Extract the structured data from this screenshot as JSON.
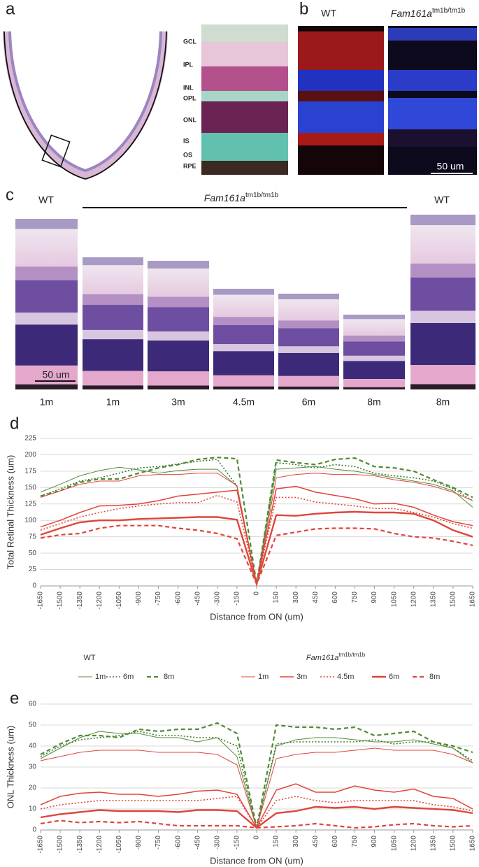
{
  "panel_a": {
    "label": "a",
    "layers": [
      "GCL",
      "IPL",
      "INL",
      "OPL",
      "ONL",
      "IS",
      "OS",
      "RPE"
    ]
  },
  "panel_b": {
    "label": "b",
    "wt": "WT",
    "mutant": {
      "gene": "Fam161a",
      "allele": "tm1b/tm1b"
    },
    "scale_bar": "50 um"
  },
  "panel_c": {
    "label": "c",
    "wt_left": "WT",
    "mutant": {
      "gene": "Fam161a",
      "allele": "tm1b/tm1b"
    },
    "wt_right": "WT",
    "scale_bar": "50 um",
    "ages": [
      "1m",
      "1m",
      "3m",
      "4.5m",
      "6m",
      "8m",
      "8m"
    ]
  },
  "legend_titles": [
    "WT",
    {
      "gene": "Fam161a",
      "allele": "tm1b/tm1b"
    }
  ],
  "chart_data": [
    {
      "type": "line",
      "panel_label": "d",
      "y_label": "Total Retinal Thickness (um)",
      "x_label": "Distance from ON (um)",
      "x": [
        -1650,
        -1500,
        -1350,
        -1200,
        -1050,
        -900,
        -750,
        -600,
        -450,
        -300,
        -150,
        0,
        150,
        300,
        450,
        600,
        750,
        900,
        1050,
        1200,
        1350,
        1500,
        1650
      ],
      "xlim": [
        -1650,
        1650
      ],
      "xticks": [
        -1650,
        -1500,
        -1350,
        -1200,
        -1050,
        -900,
        -750,
        -600,
        -450,
        -300,
        -150,
        0,
        150,
        300,
        450,
        600,
        750,
        900,
        1050,
        1200,
        1350,
        1500,
        1650
      ],
      "ylim": [
        0,
        225
      ],
      "yticks": [
        0,
        25,
        50,
        75,
        100,
        125,
        150,
        175,
        200,
        225
      ],
      "grid": true,
      "series": [
        {
          "name": "1m",
          "color": "#5a8a3a",
          "width": 1,
          "dash": "solid",
          "values": [
            143,
            155,
            168,
            176,
            181,
            177,
            172,
            176,
            178,
            178,
            152,
            3,
            178,
            180,
            182,
            178,
            175,
            170,
            165,
            160,
            155,
            145,
            120
          ]
        },
        {
          "name": "6m",
          "color": "#3f7a2a",
          "width": 1.6,
          "dash": "dotted",
          "values": [
            137,
            148,
            160,
            165,
            172,
            180,
            182,
            186,
            190,
            193,
            152,
            3,
            188,
            185,
            180,
            185,
            182,
            172,
            168,
            165,
            160,
            148,
            130
          ]
        },
        {
          "name": "8m",
          "color": "#4f8a35",
          "width": 2.2,
          "dash": "dashed",
          "values": [
            137,
            145,
            158,
            163,
            163,
            172,
            180,
            185,
            193,
            196,
            194,
            3,
            192,
            188,
            185,
            193,
            195,
            182,
            180,
            175,
            162,
            150,
            135
          ]
        },
        {
          "name": "1m",
          "color": "#e0453a",
          "width": 1,
          "dash": "solid",
          "values": [
            135,
            145,
            155,
            160,
            160,
            168,
            170,
            170,
            172,
            172,
            153,
            3,
            165,
            170,
            172,
            170,
            170,
            168,
            162,
            158,
            152,
            143,
            130
          ]
        },
        {
          "name": "3m",
          "color": "#e0453a",
          "width": 1.5,
          "dash": "solid",
          "values": [
            90,
            100,
            112,
            122,
            123,
            125,
            130,
            137,
            140,
            143,
            146,
            3,
            148,
            152,
            143,
            138,
            133,
            125,
            126,
            120,
            108,
            98,
            92
          ]
        },
        {
          "name": "4.5m",
          "color": "#e0453a",
          "width": 1.6,
          "dash": "dotted",
          "values": [
            85,
            95,
            105,
            112,
            118,
            122,
            125,
            127,
            127,
            138,
            128,
            3,
            135,
            135,
            128,
            125,
            122,
            118,
            118,
            112,
            105,
            95,
            88
          ]
        },
        {
          "name": "6m",
          "color": "#e0453a",
          "width": 2.4,
          "dash": "solid",
          "values": [
            78,
            88,
            97,
            100,
            100,
            102,
            103,
            104,
            105,
            105,
            101,
            3,
            108,
            107,
            110,
            112,
            113,
            112,
            112,
            110,
            100,
            85,
            75
          ]
        },
        {
          "name": "8m",
          "color": "#e0453a",
          "width": 2.2,
          "dash": "dashed",
          "values": [
            73,
            78,
            80,
            88,
            92,
            92,
            92,
            88,
            85,
            80,
            72,
            3,
            77,
            82,
            87,
            88,
            88,
            87,
            80,
            75,
            73,
            68,
            62
          ]
        }
      ]
    },
    {
      "type": "line",
      "panel_label": "e",
      "y_label": "ONL Thickness (um)",
      "x_label": "Distance from ON (um)",
      "x": [
        -1650,
        -1500,
        -1350,
        -1200,
        -1050,
        -900,
        -750,
        -600,
        -450,
        -300,
        -150,
        0,
        150,
        300,
        450,
        600,
        750,
        900,
        1050,
        1200,
        1350,
        1500,
        1650
      ],
      "xlim": [
        -1650,
        1650
      ],
      "xticks": [
        -1650,
        -1500,
        -1350,
        -1200,
        -1050,
        -900,
        -750,
        -600,
        -450,
        -300,
        -150,
        0,
        150,
        300,
        450,
        600,
        750,
        900,
        1050,
        1200,
        1350,
        1500,
        1650
      ],
      "ylim": [
        0,
        60
      ],
      "yticks": [
        0,
        10,
        20,
        30,
        40,
        50,
        60
      ],
      "grid": true,
      "series": [
        {
          "color": "#5a8a3a",
          "width": 1,
          "dash": "solid",
          "values": [
            34,
            39,
            44,
            47,
            46,
            46,
            44,
            44,
            42,
            44,
            35,
            1,
            40,
            43,
            44,
            44,
            43,
            42,
            42,
            43,
            41,
            39,
            32
          ]
        },
        {
          "color": "#3f7a2a",
          "width": 1.6,
          "dash": "dotted",
          "values": [
            35,
            40,
            43,
            44,
            45,
            47,
            45,
            45,
            44,
            44,
            40,
            1,
            41,
            42,
            42,
            42,
            42,
            43,
            41,
            42,
            42,
            39,
            33
          ]
        },
        {
          "color": "#4f8a35",
          "width": 2.2,
          "dash": "dashed",
          "values": [
            36,
            41,
            45,
            45,
            44,
            48,
            47,
            48,
            48,
            51,
            46,
            1,
            50,
            49,
            49,
            48,
            49,
            45,
            46,
            47,
            42,
            40,
            37
          ]
        },
        {
          "color": "#e0453a",
          "width": 1,
          "dash": "solid",
          "values": [
            33,
            35,
            37,
            38,
            38,
            38,
            37,
            37,
            37,
            36,
            31,
            1,
            34,
            36,
            37,
            37,
            38,
            39,
            38,
            38,
            38,
            36,
            32
          ]
        },
        {
          "color": "#e0453a",
          "width": 1.5,
          "dash": "solid",
          "values": [
            12,
            16,
            17.5,
            18,
            17,
            17,
            16,
            17,
            18.5,
            19,
            17,
            1,
            19,
            22,
            18,
            18,
            21,
            19,
            18,
            19.5,
            16,
            15,
            10
          ]
        },
        {
          "color": "#e0453a",
          "width": 1.6,
          "dash": "dotted",
          "values": [
            10,
            12,
            13,
            14,
            14,
            14,
            14,
            14,
            14,
            15,
            16,
            1,
            14,
            16,
            14,
            13,
            14,
            14,
            14,
            14,
            12,
            11,
            9
          ]
        },
        {
          "color": "#e0453a",
          "width": 2.4,
          "dash": "solid",
          "values": [
            6,
            7.5,
            8.5,
            9.5,
            9,
            9,
            9,
            8.5,
            9.5,
            9.5,
            9,
            1,
            8,
            9,
            11,
            10.5,
            11,
            10,
            11,
            10.5,
            10,
            9.5,
            8
          ]
        },
        {
          "color": "#e0453a",
          "width": 2.2,
          "dash": "dashed",
          "values": [
            3,
            4.5,
            3.5,
            4,
            3.5,
            4,
            3,
            2,
            2,
            2,
            2,
            1,
            1.5,
            2,
            3,
            2,
            1,
            1.5,
            2.5,
            3,
            2,
            1.5,
            2
          ]
        }
      ]
    }
  ]
}
